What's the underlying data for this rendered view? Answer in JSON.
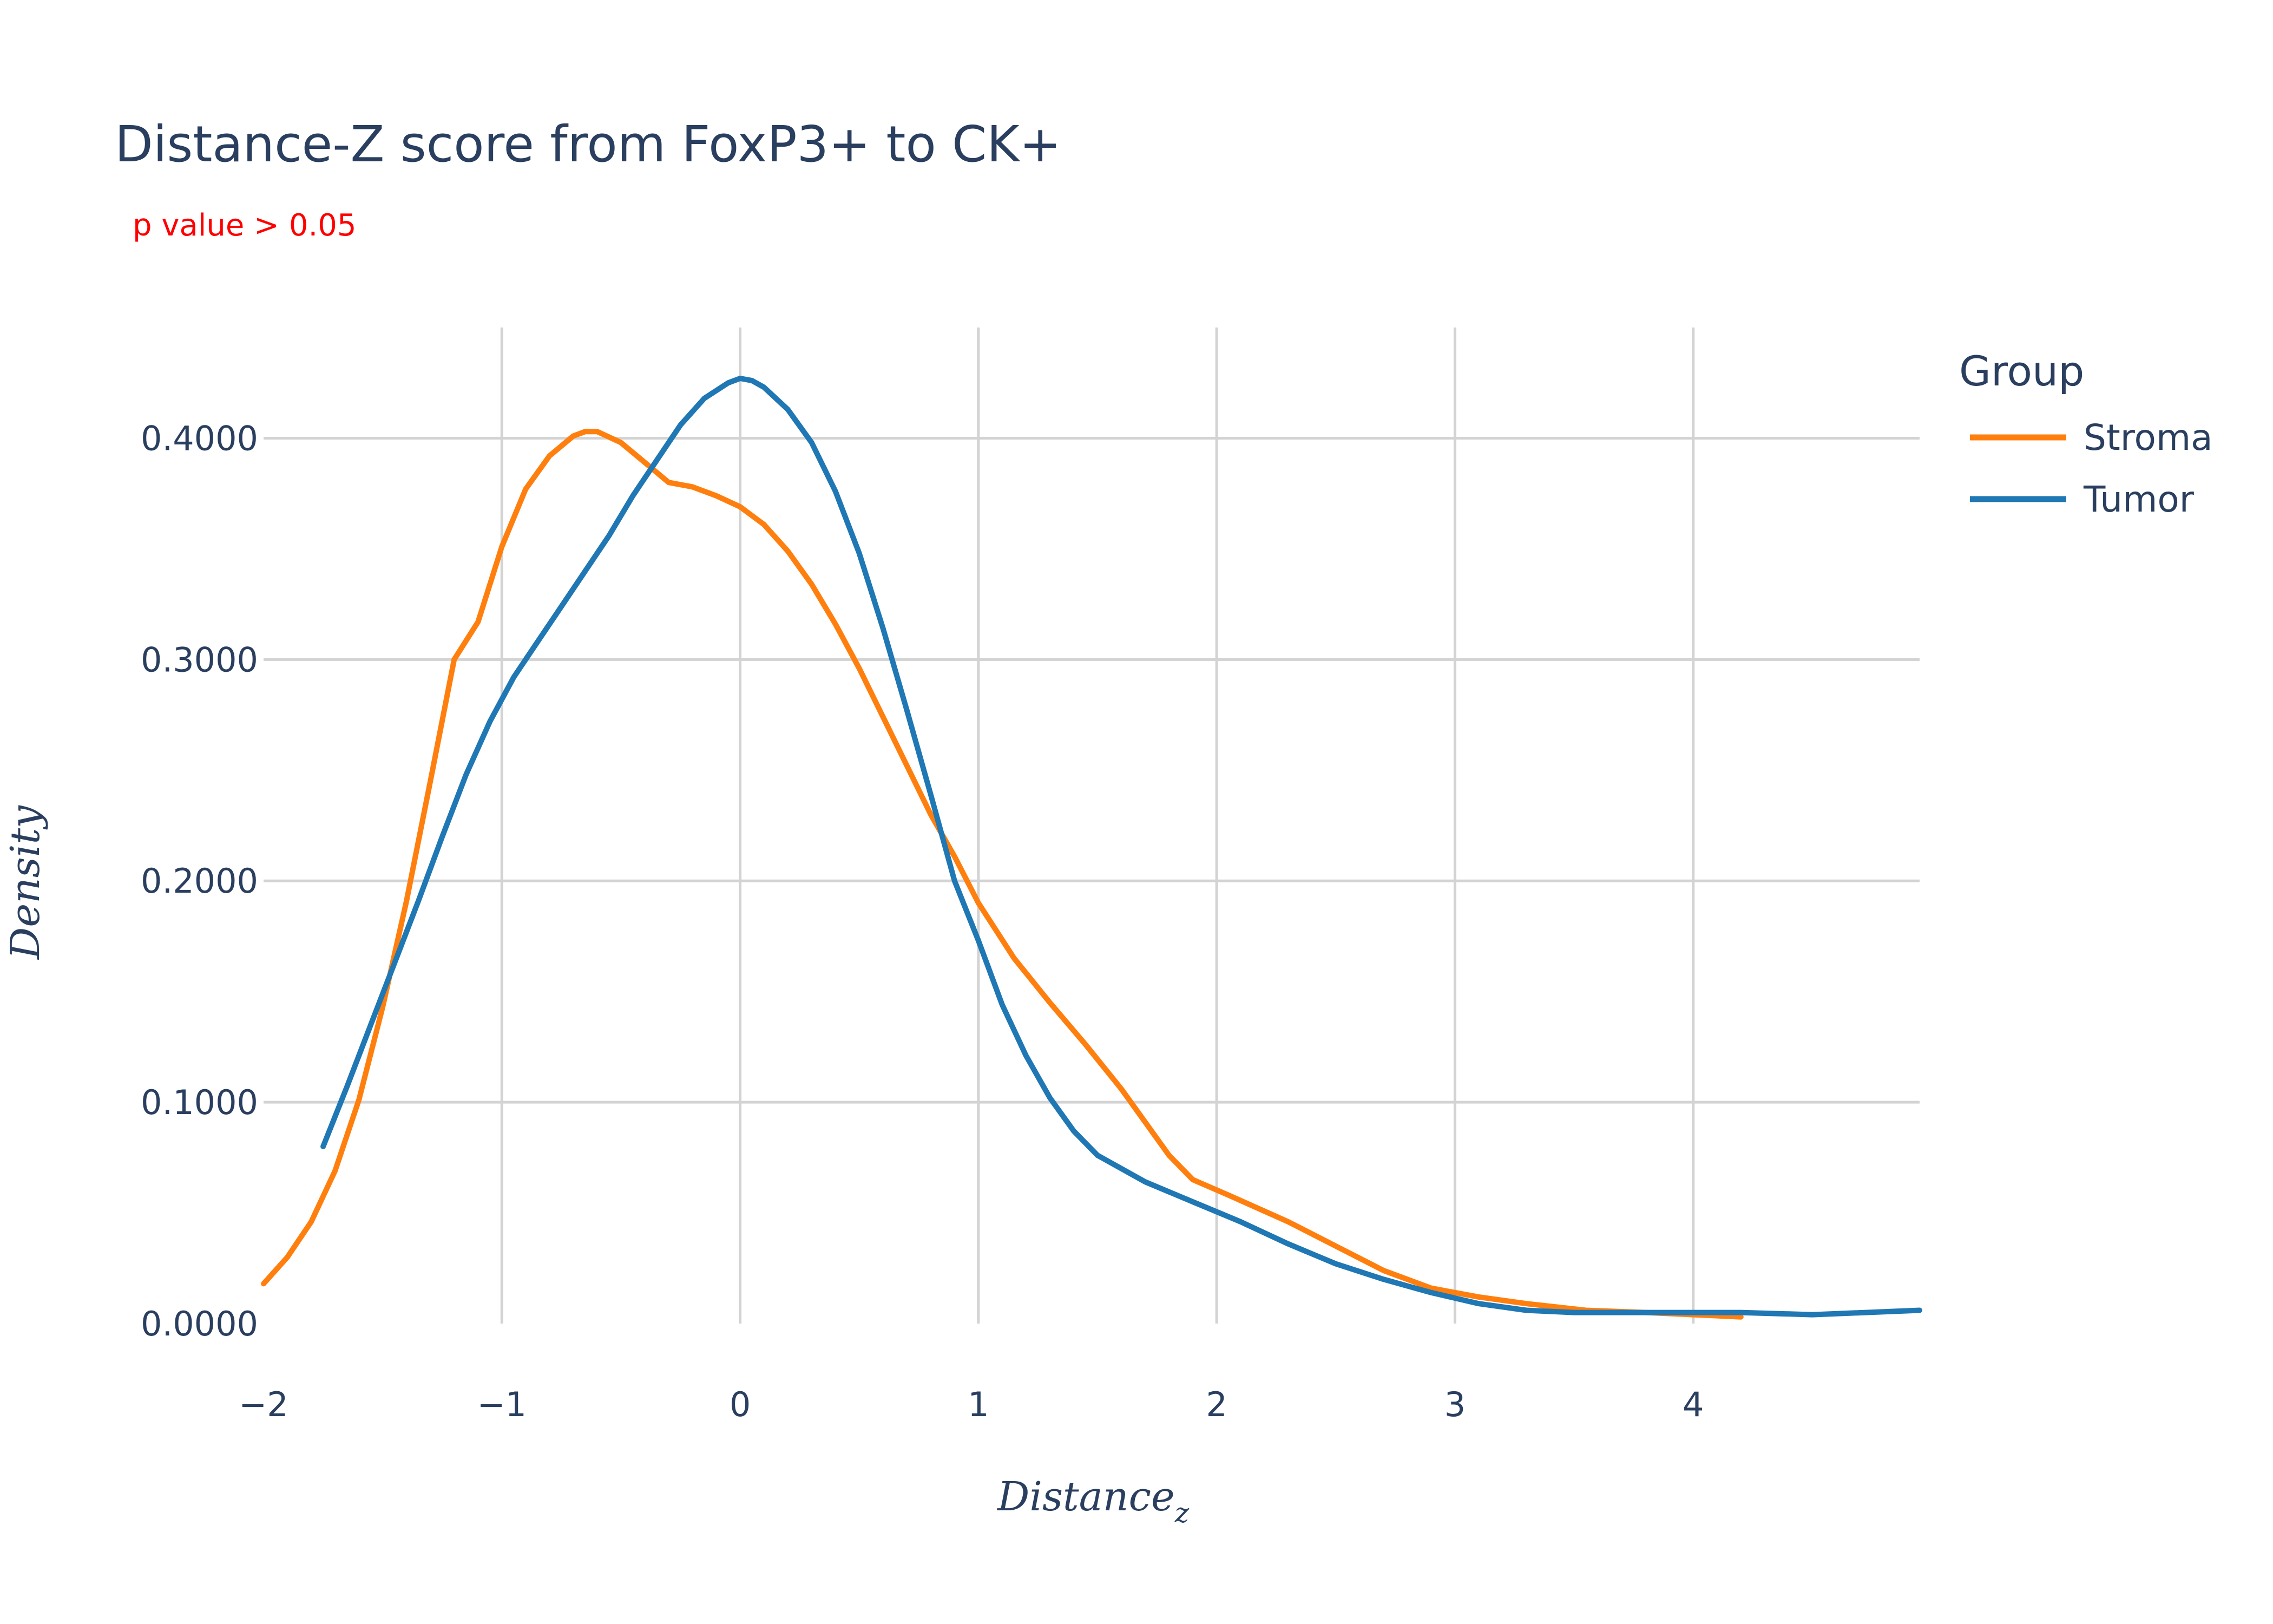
{
  "chart_data": {
    "type": "line",
    "title": "Distance-Z score from FoxP3+ to CK+",
    "subtitle": "p value > 0.05",
    "xlabel": "Distance",
    "xlabel_sub": "z",
    "ylabel": "Density",
    "xlim": [
      -2,
      4.95
    ],
    "ylim": [
      0,
      0.45
    ],
    "x_ticks": [
      -2,
      -1,
      0,
      1,
      2,
      3,
      4
    ],
    "x_tick_labels": [
      "−2",
      "−1",
      "0",
      "1",
      "2",
      "3",
      "4"
    ],
    "y_ticks": [
      0,
      0.1,
      0.2,
      0.3,
      0.4
    ],
    "y_tick_labels": [
      "0.0000",
      "0.1000",
      "0.2000",
      "0.3000",
      "0.4000"
    ],
    "grid": true,
    "legend": {
      "title": "Group",
      "position": "top-right"
    },
    "series": [
      {
        "name": "Stroma",
        "color": "#ff7f0e",
        "points": [
          [
            -2.0,
            0.018
          ],
          [
            -1.9,
            0.03
          ],
          [
            -1.8,
            0.046
          ],
          [
            -1.7,
            0.069
          ],
          [
            -1.6,
            0.101
          ],
          [
            -1.5,
            0.143
          ],
          [
            -1.4,
            0.191
          ],
          [
            -1.3,
            0.245
          ],
          [
            -1.2,
            0.3
          ],
          [
            -1.1,
            0.317
          ],
          [
            -1.0,
            0.351
          ],
          [
            -0.9,
            0.377
          ],
          [
            -0.8,
            0.392
          ],
          [
            -0.7,
            0.401
          ],
          [
            -0.65,
            0.403
          ],
          [
            -0.6,
            0.403
          ],
          [
            -0.5,
            0.398
          ],
          [
            -0.4,
            0.389
          ],
          [
            -0.3,
            0.38
          ],
          [
            -0.2,
            0.378
          ],
          [
            -0.1,
            0.374
          ],
          [
            0.0,
            0.369
          ],
          [
            0.1,
            0.361
          ],
          [
            0.2,
            0.349
          ],
          [
            0.3,
            0.334
          ],
          [
            0.4,
            0.316
          ],
          [
            0.5,
            0.296
          ],
          [
            0.6,
            0.274
          ],
          [
            0.7,
            0.252
          ],
          [
            0.8,
            0.23
          ],
          [
            0.9,
            0.211
          ],
          [
            1.0,
            0.19
          ],
          [
            1.15,
            0.165
          ],
          [
            1.3,
            0.145
          ],
          [
            1.45,
            0.126
          ],
          [
            1.6,
            0.106
          ],
          [
            1.8,
            0.076
          ],
          [
            1.9,
            0.065
          ],
          [
            2.05,
            0.058
          ],
          [
            2.3,
            0.046
          ],
          [
            2.5,
            0.035
          ],
          [
            2.7,
            0.024
          ],
          [
            2.9,
            0.016
          ],
          [
            3.1,
            0.012
          ],
          [
            3.3,
            0.009
          ],
          [
            3.55,
            0.006
          ],
          [
            3.8,
            0.005
          ],
          [
            4.0,
            0.004
          ],
          [
            4.2,
            0.003
          ]
        ]
      },
      {
        "name": "Tumor",
        "color": "#1f77b4",
        "points": [
          [
            -1.75,
            0.08
          ],
          [
            -1.65,
            0.107
          ],
          [
            -1.55,
            0.135
          ],
          [
            -1.45,
            0.163
          ],
          [
            -1.35,
            0.191
          ],
          [
            -1.25,
            0.22
          ],
          [
            -1.15,
            0.248
          ],
          [
            -1.05,
            0.272
          ],
          [
            -0.95,
            0.292
          ],
          [
            -0.85,
            0.308
          ],
          [
            -0.75,
            0.324
          ],
          [
            -0.65,
            0.34
          ],
          [
            -0.55,
            0.356
          ],
          [
            -0.45,
            0.374
          ],
          [
            -0.35,
            0.39
          ],
          [
            -0.25,
            0.406
          ],
          [
            -0.15,
            0.418
          ],
          [
            -0.05,
            0.425
          ],
          [
            0.0,
            0.427
          ],
          [
            0.05,
            0.426
          ],
          [
            0.1,
            0.423
          ],
          [
            0.2,
            0.413
          ],
          [
            0.3,
            0.398
          ],
          [
            0.4,
            0.376
          ],
          [
            0.5,
            0.348
          ],
          [
            0.6,
            0.314
          ],
          [
            0.7,
            0.277
          ],
          [
            0.8,
            0.239
          ],
          [
            0.9,
            0.2
          ],
          [
            1.0,
            0.173
          ],
          [
            1.1,
            0.144
          ],
          [
            1.2,
            0.121
          ],
          [
            1.3,
            0.102
          ],
          [
            1.4,
            0.087
          ],
          [
            1.5,
            0.076
          ],
          [
            1.7,
            0.064
          ],
          [
            1.9,
            0.055
          ],
          [
            2.1,
            0.046
          ],
          [
            2.3,
            0.036
          ],
          [
            2.5,
            0.027
          ],
          [
            2.7,
            0.02
          ],
          [
            2.9,
            0.014
          ],
          [
            3.1,
            0.009
          ],
          [
            3.3,
            0.006
          ],
          [
            3.5,
            0.005
          ],
          [
            3.8,
            0.005
          ],
          [
            4.2,
            0.005
          ],
          [
            4.5,
            0.004
          ],
          [
            4.95,
            0.006
          ]
        ]
      }
    ]
  }
}
